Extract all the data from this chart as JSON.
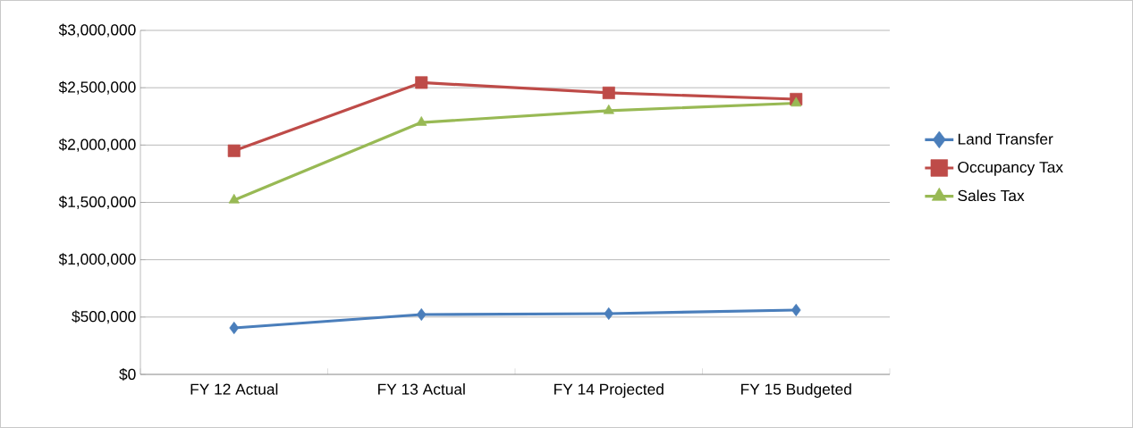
{
  "chart_data": {
    "type": "line",
    "categories": [
      "FY 12 Actual",
      "FY 13 Actual",
      "FY 14 Projected",
      "FY 15 Budgeted"
    ],
    "series": [
      {
        "name": "Land Transfer",
        "color": "#4a7ebb",
        "marker": "diamond",
        "values": [
          405000,
          522000,
          530000,
          561000
        ]
      },
      {
        "name": "Occupancy Tax",
        "color": "#be4b48",
        "marker": "square",
        "values": [
          1950000,
          2545000,
          2455000,
          2400000
        ]
      },
      {
        "name": "Sales Tax",
        "color": "#98b954",
        "marker": "triangle",
        "values": [
          1520000,
          2197000,
          2300000,
          2365000
        ]
      }
    ],
    "ylim": [
      0,
      3000000
    ],
    "yticks": [
      {
        "value": 0,
        "label": "$0"
      },
      {
        "value": 500000,
        "label": "$500,000"
      },
      {
        "value": 1000000,
        "label": "$1,000,000"
      },
      {
        "value": 1500000,
        "label": "$1,500,000"
      },
      {
        "value": 2000000,
        "label": "$2,000,000"
      },
      {
        "value": 2500000,
        "label": "$2,500,000"
      },
      {
        "value": 3000000,
        "label": "$3,000,000"
      }
    ],
    "grid": "y",
    "legend": "right",
    "line_style": "solid"
  }
}
